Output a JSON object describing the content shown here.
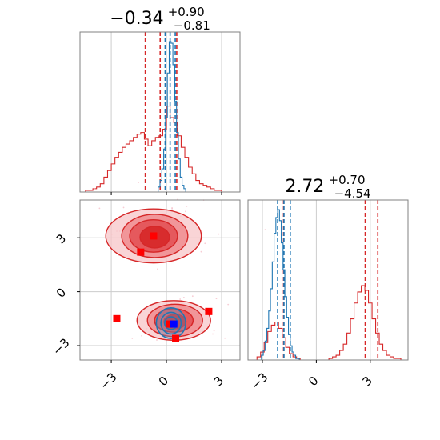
{
  "chart_data": [
    {
      "type": "histogram",
      "panel": "top-left",
      "title": {
        "median": "−0.34",
        "upper": "+0.90",
        "lower": "−0.81"
      },
      "xlim": [
        -4.7,
        4.0
      ],
      "grid": true,
      "colors": {
        "red": "#d62728",
        "blue": "#1f77b4"
      },
      "series": [
        {
          "color": "red",
          "bins": [
            -4.3,
            -4.1,
            -3.9,
            -3.7,
            -3.5,
            -3.3,
            -3.1,
            -2.9,
            -2.7,
            -2.5,
            -2.3,
            -2.1,
            -1.9,
            -1.7,
            -1.5,
            -1.3,
            -1.1,
            -0.9,
            -0.7,
            -0.5,
            -0.3,
            -0.1,
            0.1,
            0.3,
            0.5,
            0.7,
            0.9,
            1.1,
            1.3,
            1.5,
            1.7,
            1.9,
            2.1,
            2.3,
            2.5,
            2.7,
            2.9
          ],
          "counts": [
            0.01,
            0.01,
            0.02,
            0.03,
            0.05,
            0.09,
            0.13,
            0.17,
            0.21,
            0.24,
            0.27,
            0.29,
            0.31,
            0.33,
            0.35,
            0.36,
            0.32,
            0.28,
            0.31,
            0.33,
            0.34,
            0.38,
            0.52,
            0.45,
            0.42,
            0.34,
            0.27,
            0.21,
            0.15,
            0.11,
            0.07,
            0.05,
            0.04,
            0.03,
            0.02,
            0.01,
            0.01
          ],
          "vlines": [
            -1.15,
            -0.34,
            0.56
          ]
        },
        {
          "color": "blue",
          "bins": [
            -0.4,
            -0.3,
            -0.2,
            -0.1,
            0.0,
            0.1,
            0.2,
            0.3,
            0.4,
            0.5,
            0.6,
            0.7,
            0.8,
            0.9,
            1.0
          ],
          "counts": [
            0.03,
            0.07,
            0.14,
            0.26,
            0.45,
            0.72,
            0.91,
            0.9,
            0.77,
            0.55,
            0.36,
            0.2,
            0.09,
            0.04,
            0.02
          ],
          "vlines": [
            -0.07,
            0.2,
            0.48
          ]
        }
      ],
      "xticks": [
        -3,
        0,
        3
      ]
    },
    {
      "type": "scatter-contour",
      "panel": "bottom-left",
      "xlim": [
        -4.7,
        4.0
      ],
      "ylim": [
        -3.8,
        5.1
      ],
      "grid": true,
      "xticks": [
        "−3",
        "0",
        "3"
      ],
      "yticks": [
        "3",
        "0",
        "−3"
      ],
      "yticks_values": [
        3,
        0,
        -3
      ],
      "xticks_values": [
        -3,
        0,
        3
      ],
      "red_modes": [
        {
          "cx": -0.7,
          "cy": 3.1,
          "rx": [
            2.6,
            1.8,
            1.3,
            0.8
          ],
          "ry": [
            1.5,
            1.2,
            0.9,
            0.6
          ]
        },
        {
          "cx": 0.4,
          "cy": -1.6,
          "rx": [
            2.0,
            1.5,
            1.05,
            0.6
          ],
          "ry": [
            1.1,
            0.9,
            0.65,
            0.4
          ]
        }
      ],
      "blue_mode": {
        "cx": 0.25,
        "cy": -1.75,
        "rx": [
          0.8,
          0.55,
          0.35
        ],
        "ry": [
          0.85,
          0.6,
          0.35
        ]
      },
      "red_points": [
        [
          -0.7,
          3.1
        ],
        [
          -1.4,
          2.2
        ],
        [
          -2.7,
          -1.5
        ],
        [
          2.3,
          -1.1
        ],
        [
          0.5,
          -2.6
        ],
        [
          0.15,
          -1.8
        ]
      ],
      "blue_points": [
        [
          0.4,
          -1.8
        ]
      ]
    },
    {
      "type": "histogram",
      "panel": "bottom-right",
      "title": {
        "median": "2.72",
        "upper": "+0.70",
        "lower": "−4.54"
      },
      "xlim": [
        -3.8,
        5.1
      ],
      "grid": true,
      "xticks": [
        "−3",
        "0",
        "3"
      ],
      "xticks_values": [
        -3,
        0,
        3
      ],
      "series": [
        {
          "color": "red",
          "bins": [
            -3.2,
            -3.0,
            -2.8,
            -2.6,
            -2.4,
            -2.2,
            -2.0,
            -1.8,
            -1.6,
            -1.4,
            -1.2,
            -1.0,
            -0.8,
            -0.6,
            -0.4,
            -0.2,
            0.0,
            0.2,
            0.4,
            0.6,
            0.8,
            1.0,
            1.2,
            1.4,
            1.6,
            1.8,
            2.0,
            2.2,
            2.4,
            2.6,
            2.8,
            3.0,
            3.2,
            3.4,
            3.6,
            3.8,
            4.0,
            4.2,
            4.4,
            4.6,
            4.8
          ],
          "counts": [
            0.02,
            0.05,
            0.11,
            0.18,
            0.22,
            0.24,
            0.2,
            0.14,
            0.08,
            0.04,
            0.02,
            0.01,
            0.0,
            0.0,
            0.0,
            0.0,
            0.0,
            0.0,
            0.0,
            0.0,
            0.01,
            0.02,
            0.03,
            0.06,
            0.1,
            0.17,
            0.26,
            0.36,
            0.43,
            0.47,
            0.44,
            0.36,
            0.26,
            0.17,
            0.1,
            0.06,
            0.03,
            0.02,
            0.01,
            0.01,
            0.0
          ],
          "vlines": [
            -1.82,
            2.72,
            3.42
          ]
        },
        {
          "color": "blue",
          "bins": [
            -3.0,
            -2.9,
            -2.8,
            -2.7,
            -2.6,
            -2.5,
            -2.4,
            -2.3,
            -2.2,
            -2.1,
            -2.0,
            -1.9,
            -1.8,
            -1.7,
            -1.6,
            -1.5,
            -1.4,
            -1.3,
            -1.2,
            -1.1,
            -1.0
          ],
          "counts": [
            0.03,
            0.06,
            0.12,
            0.2,
            0.31,
            0.45,
            0.62,
            0.8,
            0.9,
            0.95,
            0.88,
            0.74,
            0.57,
            0.4,
            0.27,
            0.16,
            0.09,
            0.05,
            0.03,
            0.01,
            0.01
          ],
          "vlines": [
            -2.15,
            -1.8,
            -1.45
          ]
        }
      ]
    }
  ]
}
